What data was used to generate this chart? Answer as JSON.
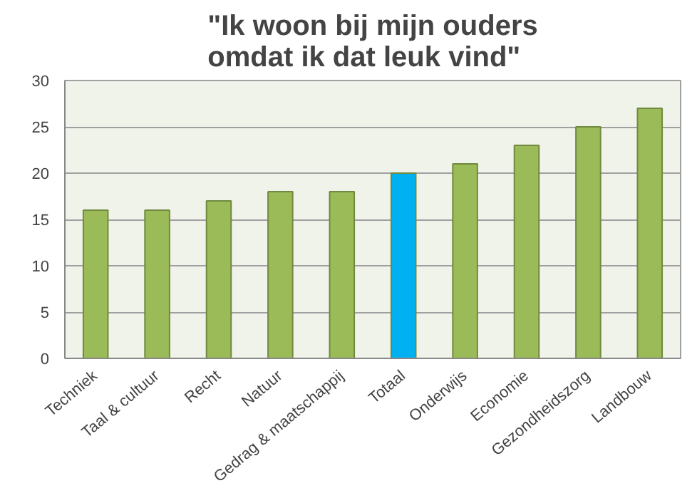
{
  "chart_data": {
    "type": "bar",
    "title": "\"Ik woon bij mijn ouders\nomdat ik dat leuk vind\"",
    "categories": [
      "Techniek",
      "Taal & cultuur",
      "Recht",
      "Natuur",
      "Gedrag & maatschappij",
      "Totaal",
      "Onderwijs",
      "Economie",
      "Gezondheidszorg",
      "Landbouw"
    ],
    "values": [
      16,
      16,
      17,
      18,
      18,
      20,
      21,
      23,
      25,
      27
    ],
    "colors": [
      "#9bbb59",
      "#9bbb59",
      "#9bbb59",
      "#9bbb59",
      "#9bbb59",
      "#00b0f0",
      "#9bbb59",
      "#9bbb59",
      "#9bbb59",
      "#9bbb59"
    ],
    "ylim": [
      0,
      30
    ],
    "yticks": [
      0,
      5,
      10,
      15,
      20,
      25,
      30
    ],
    "grid": "y"
  }
}
